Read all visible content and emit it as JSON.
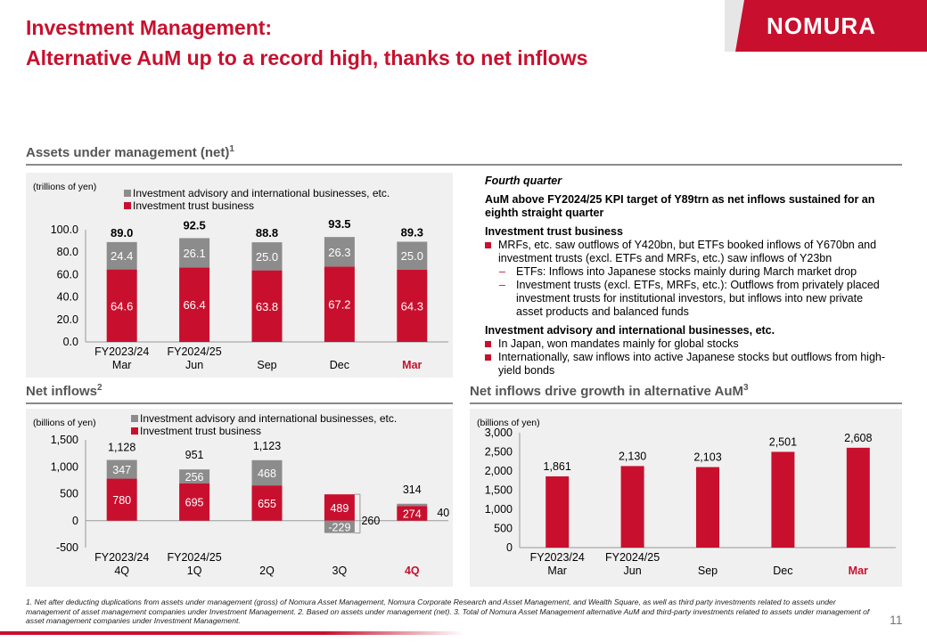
{
  "header": {
    "title_line1": "Investment Management:",
    "title_line2": "Alternative AuM up to a record high, thanks to net inflows",
    "logo_text": "NOMURA"
  },
  "colors": {
    "brand_red": "#c8102e",
    "grey_series": "#8c8c8c"
  },
  "sections": {
    "aum_title": "Assets under management (net)",
    "aum_sup": "1",
    "net_inflows_title": "Net inflows",
    "net_inflows_sup": "2",
    "alt_title": "Net inflows drive growth in alternative AuM",
    "alt_sup": "3"
  },
  "right_text": {
    "quarter": "Fourth quarter",
    "kpi": "AuM above FY2024/25 KPI target of Y89trn as net inflows sustained for an eighth straight quarter",
    "itb_head": "Investment trust business",
    "itb_b1": "MRFs, etc. saw outflows of Y420bn, but ETFs booked inflows of Y670bn and investment trusts (excl. ETFs and MRFs, etc.) saw inflows of Y23bn",
    "itb_s1": "ETFs: Inflows into Japanese stocks mainly during March market drop",
    "itb_s2": "Investment trusts (excl. ETFs, MRFs, etc.): Outflows from privately placed investment trusts for institutional investors, but inflows into new private asset products and balanced funds",
    "iaib_head": "Investment advisory and international businesses, etc.",
    "iaib_b1": "In Japan, won mandates mainly for global stocks",
    "iaib_b2": "Internationally, saw inflows into active Japanese stocks but outflows from high-yield bonds"
  },
  "chart_data": [
    {
      "type": "bar",
      "stacked": true,
      "unit_label": "(trillions of yen)",
      "categories": [
        [
          "FY2023/24",
          "Mar"
        ],
        [
          "FY2024/25",
          "Jun"
        ],
        [
          "",
          "Sep"
        ],
        [
          "",
          "Dec"
        ],
        [
          "",
          "Mar"
        ]
      ],
      "series": [
        {
          "name": "Investment trust business",
          "values": [
            64.6,
            66.4,
            63.8,
            67.2,
            64.3
          ]
        },
        {
          "name": "Investment advisory and international businesses, etc.",
          "values": [
            24.4,
            26.1,
            25.0,
            26.3,
            25.0
          ]
        }
      ],
      "totals": [
        89.0,
        92.5,
        88.8,
        93.5,
        89.3
      ],
      "value_labels": {
        "trust": [
          "64.6",
          "66.4",
          "63.8",
          "67.2",
          "64.3"
        ],
        "advisory": [
          "24.4",
          "26.1",
          "25.0",
          "26.3",
          "25.0"
        ],
        "totals": [
          "89.0",
          "92.5",
          "88.8",
          "93.5",
          "89.3"
        ]
      },
      "yticks": [
        "0.0",
        "20.0",
        "40.0",
        "60.0",
        "80.0",
        "100.0"
      ],
      "ylim": [
        0,
        100
      ],
      "legend": "top-left",
      "highlight_last": true
    },
    {
      "type": "bar",
      "stacked": true,
      "unit_label": "(billions of yen)",
      "categories": [
        [
          "FY2023/24",
          "4Q"
        ],
        [
          "FY2024/25",
          "1Q"
        ],
        [
          "",
          "2Q"
        ],
        [
          "",
          "3Q"
        ],
        [
          "",
          "4Q"
        ]
      ],
      "series": [
        {
          "name": "Investment trust business",
          "values": [
            780,
            695,
            655,
            489,
            274
          ]
        },
        {
          "name": "Investment advisory and international businesses, etc.",
          "values": [
            347,
            256,
            468,
            -229,
            40
          ]
        }
      ],
      "totals": [
        1128,
        951,
        1123,
        260,
        314
      ],
      "value_labels": {
        "trust": [
          "780",
          "695",
          "655",
          "489",
          "274"
        ],
        "advisory": [
          "347",
          "256",
          "468",
          "-229",
          "40"
        ],
        "totals": [
          "1,128",
          "951",
          "1,123",
          "260",
          "314"
        ]
      },
      "yticks": [
        "-500",
        "0",
        "500",
        "1,000",
        "1,500"
      ],
      "ylim": [
        -500,
        1500
      ],
      "legend": "top-left",
      "highlight_last": true
    },
    {
      "type": "bar",
      "unit_label": "(billions of yen)",
      "categories": [
        [
          "FY2023/24",
          "Mar"
        ],
        [
          "FY2024/25",
          "Jun"
        ],
        [
          "",
          "Sep"
        ],
        [
          "",
          "Dec"
        ],
        [
          "",
          "Mar"
        ]
      ],
      "values": [
        1861,
        2130,
        2103,
        2501,
        2608
      ],
      "value_labels": [
        "1,861",
        "2,130",
        "2,103",
        "2,501",
        "2,608"
      ],
      "yticks": [
        "0",
        "500",
        "1,000",
        "1,500",
        "2,000",
        "2,500",
        "3,000"
      ],
      "ylim": [
        0,
        3000
      ],
      "highlight_last": true
    }
  ],
  "footnote": "1.   Net after deducting duplications from assets under management (gross) of Nomura Asset Management, Nomura Corporate Research and Asset Management, and Wealth Square, as well as third party investments related to assets under management of asset management companies under Investment Management.          2.   Based on assets under management (net).          3.   Total of Nomura Asset Management alternative AuM and third-party investments related to assets under management of asset management companies under Investment Management.",
  "page_number": "11"
}
